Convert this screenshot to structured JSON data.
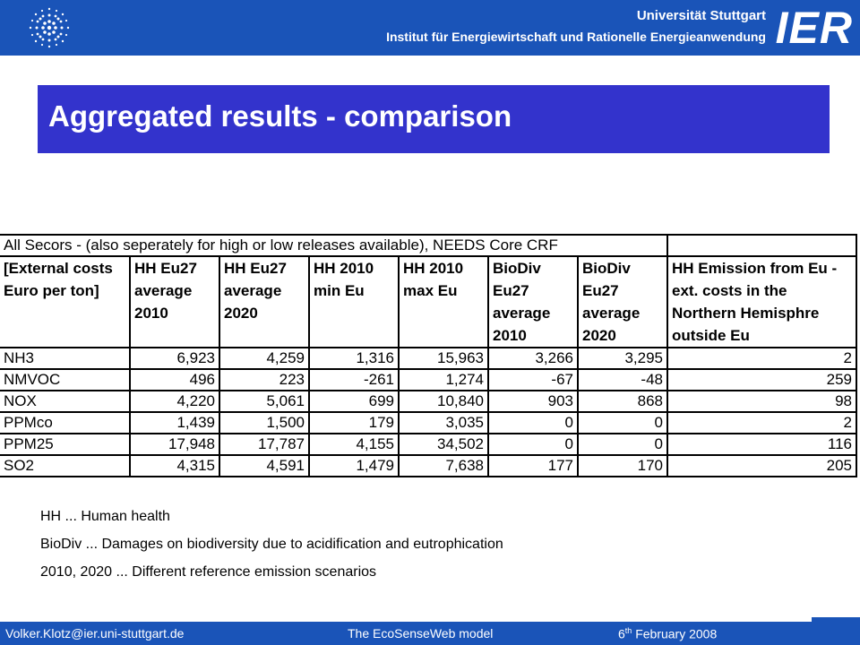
{
  "header": {
    "university": "Universität Stuttgart",
    "institute": "Institut für Energiewirtschaft und Rationelle Energieanwendung",
    "logo_text": "IER",
    "seal_icon": "university-seal-icon",
    "band_color": "#1a54b8"
  },
  "slide": {
    "title": "Aggregated results - comparison",
    "title_color": "#3333cc"
  },
  "table": {
    "caption": "All Secors - (also seperately for high or low releases available), NEEDS Core CRF",
    "headers": [
      "[External costs Euro per ton]",
      "HH Eu27 average 2010",
      "HH Eu27 average 2020",
      "HH 2010 min Eu",
      "HH 2010 max Eu",
      "BioDiv Eu27 average 2010",
      "BioDiv Eu27 average 2020",
      "HH Emission from Eu - ext. costs in the Northern Hemisphre outside Eu"
    ],
    "rows": [
      {
        "pollutant": "NH3",
        "values": [
          "6,923",
          "4,259",
          "1,316",
          "15,963",
          "3,266",
          "3,295",
          "2"
        ]
      },
      {
        "pollutant": "NMVOC",
        "values": [
          "496",
          "223",
          "-261",
          "1,274",
          "-67",
          "-48",
          "259"
        ]
      },
      {
        "pollutant": "NOX",
        "values": [
          "4,220",
          "5,061",
          "699",
          "10,840",
          "903",
          "868",
          "98"
        ]
      },
      {
        "pollutant": "PPMco",
        "values": [
          "1,439",
          "1,500",
          "179",
          "3,035",
          "0",
          "0",
          "2"
        ]
      },
      {
        "pollutant": "PPM25",
        "values": [
          "17,948",
          "17,787",
          "4,155",
          "34,502",
          "0",
          "0",
          "116"
        ]
      },
      {
        "pollutant": "SO2",
        "values": [
          "4,315",
          "4,591",
          "1,479",
          "7,638",
          "177",
          "170",
          "205"
        ]
      }
    ]
  },
  "notes": [
    "HH ... Human health",
    "BioDiv ... Damages on biodiversity due to acidification and eutrophication",
    "2010, 2020 ... Different reference emission scenarios"
  ],
  "footer": {
    "email": "Volker.Klotz@ier.uni-stuttgart.de",
    "model": "The EcoSenseWeb model",
    "date_day": "6",
    "date_suffix": "th",
    "date_rest": " February 2008"
  }
}
